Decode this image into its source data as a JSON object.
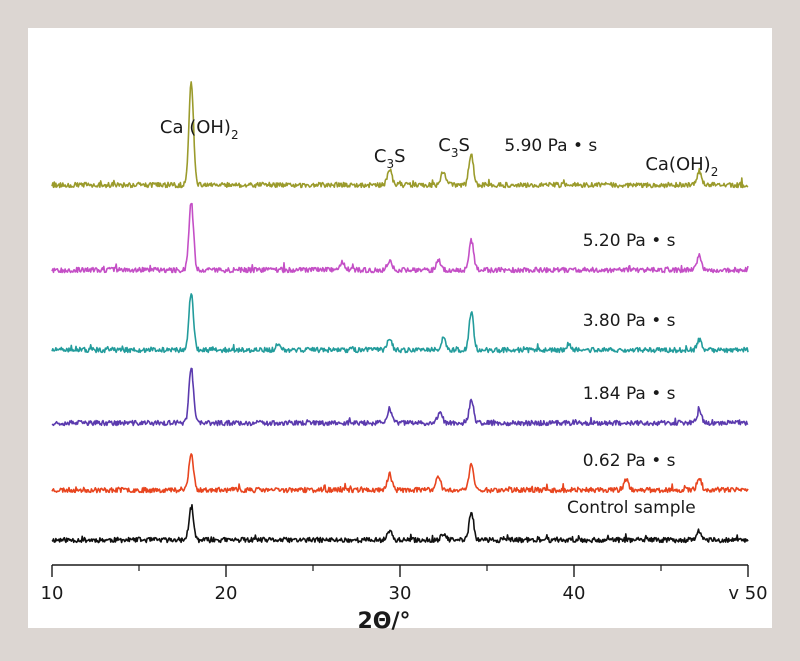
{
  "chart_data": {
    "type": "line",
    "title": "",
    "xlabel": "2Θ/°",
    "ylabel": "",
    "xlim": [
      10,
      50
    ],
    "x_ticks": [
      {
        "value": 10,
        "label": "10"
      },
      {
        "value": 20,
        "label": "20"
      },
      {
        "value": 30,
        "label": "30"
      },
      {
        "value": 40,
        "label": "40"
      },
      {
        "value": 50,
        "label": "v 50"
      }
    ],
    "minor_ticks": [
      15,
      25,
      35,
      45
    ],
    "legend": "none",
    "grid": false,
    "series": [
      {
        "name": "Control sample",
        "color": "#111111",
        "offset": 0,
        "label_x": 39.6,
        "label_y": 27,
        "peaks": [
          [
            18.0,
            32
          ],
          [
            29.4,
            10
          ],
          [
            32.5,
            6
          ],
          [
            34.1,
            28
          ],
          [
            47.2,
            9
          ]
        ],
        "seed": 11
      },
      {
        "name": "0.62 Pa • s",
        "color": "#e8451f",
        "offset": 50,
        "label_x": 40.5,
        "label_y": 24,
        "peaks": [
          [
            18.0,
            36
          ],
          [
            29.4,
            16
          ],
          [
            32.2,
            14
          ],
          [
            34.1,
            26
          ],
          [
            43.0,
            10
          ],
          [
            47.2,
            12
          ]
        ],
        "seed": 23
      },
      {
        "name": "1.84 Pa • s",
        "color": "#5b3aae",
        "offset": 117,
        "label_x": 40.5,
        "label_y": 24,
        "peaks": [
          [
            18.0,
            55
          ],
          [
            29.4,
            14
          ],
          [
            32.3,
            12
          ],
          [
            34.1,
            22
          ],
          [
            47.2,
            12
          ]
        ],
        "seed": 37
      },
      {
        "name": "3.80 Pa • s",
        "color": "#239c9c",
        "offset": 190,
        "label_x": 40.5,
        "label_y": 24,
        "peaks": [
          [
            18.0,
            58
          ],
          [
            23.0,
            6
          ],
          [
            29.4,
            12
          ],
          [
            32.5,
            12
          ],
          [
            34.1,
            38
          ],
          [
            39.7,
            6
          ],
          [
            47.2,
            10
          ]
        ],
        "seed": 51
      },
      {
        "name": "5.20 Pa • s",
        "color": "#c44fc6",
        "offset": 270,
        "label_x": 40.5,
        "label_y": 24,
        "peaks": [
          [
            18.0,
            68
          ],
          [
            26.7,
            8
          ],
          [
            29.4,
            10
          ],
          [
            32.2,
            10
          ],
          [
            34.1,
            30
          ],
          [
            47.2,
            14
          ]
        ],
        "seed": 67
      },
      {
        "name": "5.90 Pa • s",
        "color": "#9b9b2c",
        "offset": 355,
        "label_x": 36.0,
        "label_y": 34,
        "peaks": [
          [
            18.0,
            104
          ],
          [
            29.4,
            16
          ],
          [
            32.5,
            14
          ],
          [
            34.1,
            30
          ],
          [
            47.2,
            14
          ]
        ],
        "seed": 79
      }
    ],
    "annotations": [
      {
        "text": "Ca (OH)",
        "sub": "2",
        "x": 16.2,
        "y_above": 407
      },
      {
        "text": "C",
        "sub": "3",
        "suffix": "S",
        "x": 28.5,
        "y_above": 378
      },
      {
        "text": "C",
        "sub": "3",
        "suffix": "S",
        "x": 32.2,
        "y_above": 389
      },
      {
        "text": "Ca(OH)",
        "sub": "2",
        "x": 44.1,
        "y_above": 370
      }
    ]
  }
}
